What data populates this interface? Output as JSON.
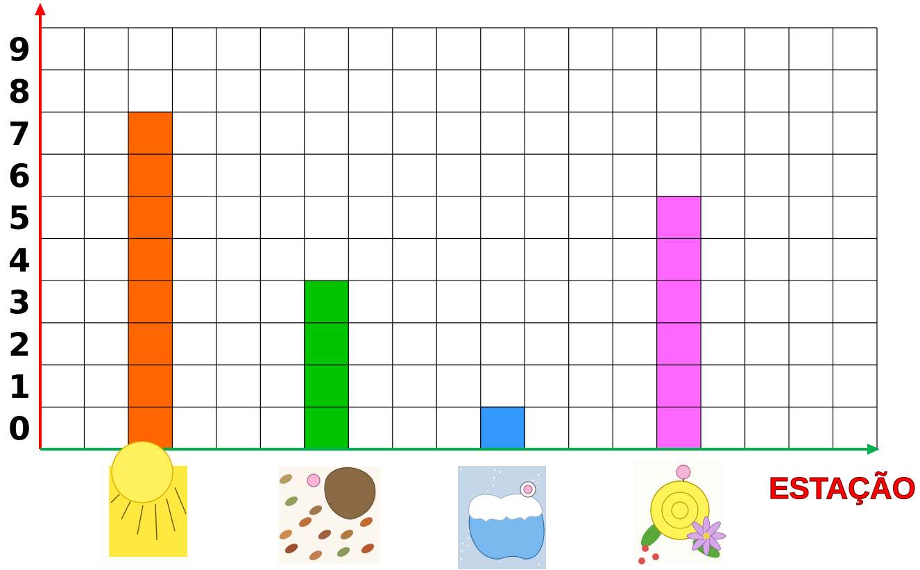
{
  "chart_data": {
    "type": "bar",
    "categories": [
      "Verão",
      "Outono",
      "Inverno",
      "Primavera"
    ],
    "category_icons": [
      "sun-icon",
      "autumn-leaves-apple-icon",
      "winter-snow-apple-icon",
      "spring-flower-icon"
    ],
    "values": [
      8,
      4,
      1,
      6
    ],
    "bar_colors": [
      "#ff6600",
      "#00c400",
      "#3399ff",
      "#ff66ff"
    ],
    "xlabel": "ESTAÇÃO",
    "ylabel": "",
    "y_ticks": [
      "0",
      "1",
      "2",
      "3",
      "4",
      "5",
      "6",
      "7",
      "8",
      "9"
    ],
    "ylim": [
      0,
      10
    ],
    "grid": true,
    "axis_colors": {
      "y": "#ff0000",
      "x": "#00b050"
    }
  }
}
